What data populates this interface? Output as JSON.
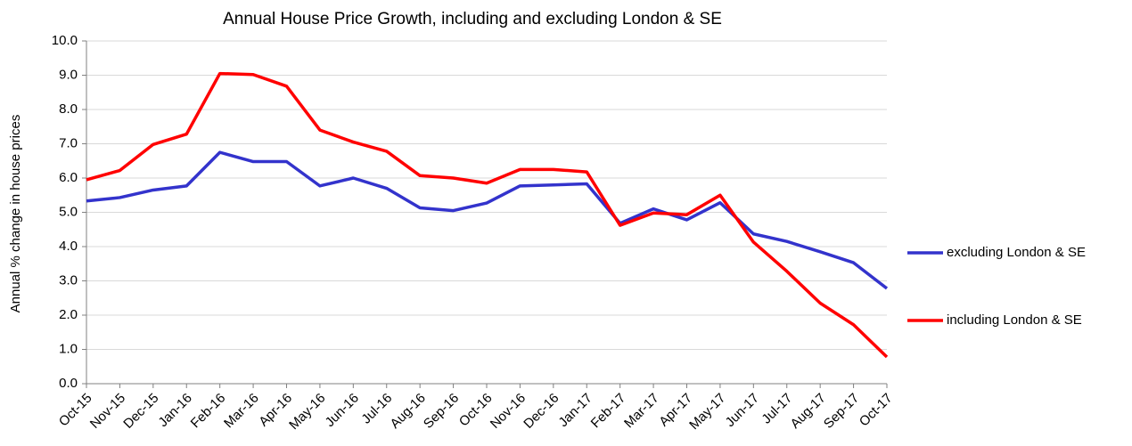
{
  "chart_data": {
    "type": "line",
    "title": "Annual House Price Growth, including and excluding London & SE",
    "y_label": "Annual % change in house prices",
    "categories": [
      "Oct-15",
      "Nov-15",
      "Dec-15",
      "Jan-16",
      "Feb-16",
      "Mar-16",
      "Apr-16",
      "May-16",
      "Jun-16",
      "Jul-16",
      "Aug-16",
      "Sep-16",
      "Oct-16",
      "Nov-16",
      "Dec-16",
      "Jan-17",
      "Feb-17",
      "Mar-17",
      "Apr-17",
      "May-17",
      "Jun-17",
      "Jul-17",
      "Aug-17",
      "Sep-17",
      "Oct-17"
    ],
    "series": [
      {
        "name": "excluding London & SE",
        "color": "#3333cc",
        "values": [
          5.33,
          5.43,
          5.65,
          5.77,
          6.75,
          6.48,
          6.48,
          5.77,
          6.0,
          5.7,
          5.13,
          5.05,
          5.27,
          5.77,
          5.8,
          5.83,
          4.68,
          5.1,
          4.78,
          5.28,
          4.37,
          4.15,
          3.85,
          3.53,
          2.78
        ]
      },
      {
        "name": "including London & SE",
        "color": "#ff0000",
        "values": [
          5.95,
          6.22,
          6.98,
          7.28,
          9.05,
          9.02,
          8.68,
          7.4,
          7.05,
          6.78,
          6.07,
          6.0,
          5.85,
          6.25,
          6.25,
          6.18,
          4.62,
          4.98,
          4.93,
          5.5,
          4.13,
          3.28,
          2.35,
          1.72,
          0.78
        ]
      }
    ],
    "ylim": [
      0,
      10
    ],
    "yticks": [
      {
        "value": 0,
        "label": "0.0"
      },
      {
        "value": 1,
        "label": "1.0"
      },
      {
        "value": 2,
        "label": "2.0"
      },
      {
        "value": 3,
        "label": "3.0"
      },
      {
        "value": 4,
        "label": "4.0"
      },
      {
        "value": 5,
        "label": "5.0"
      },
      {
        "value": 6,
        "label": "6.0"
      },
      {
        "value": 7,
        "label": "7.0"
      },
      {
        "value": 8,
        "label": "8.0"
      },
      {
        "value": 9,
        "label": "9.0"
      },
      {
        "value": 10,
        "label": "10.0"
      }
    ],
    "grid": true,
    "legend": "right"
  }
}
